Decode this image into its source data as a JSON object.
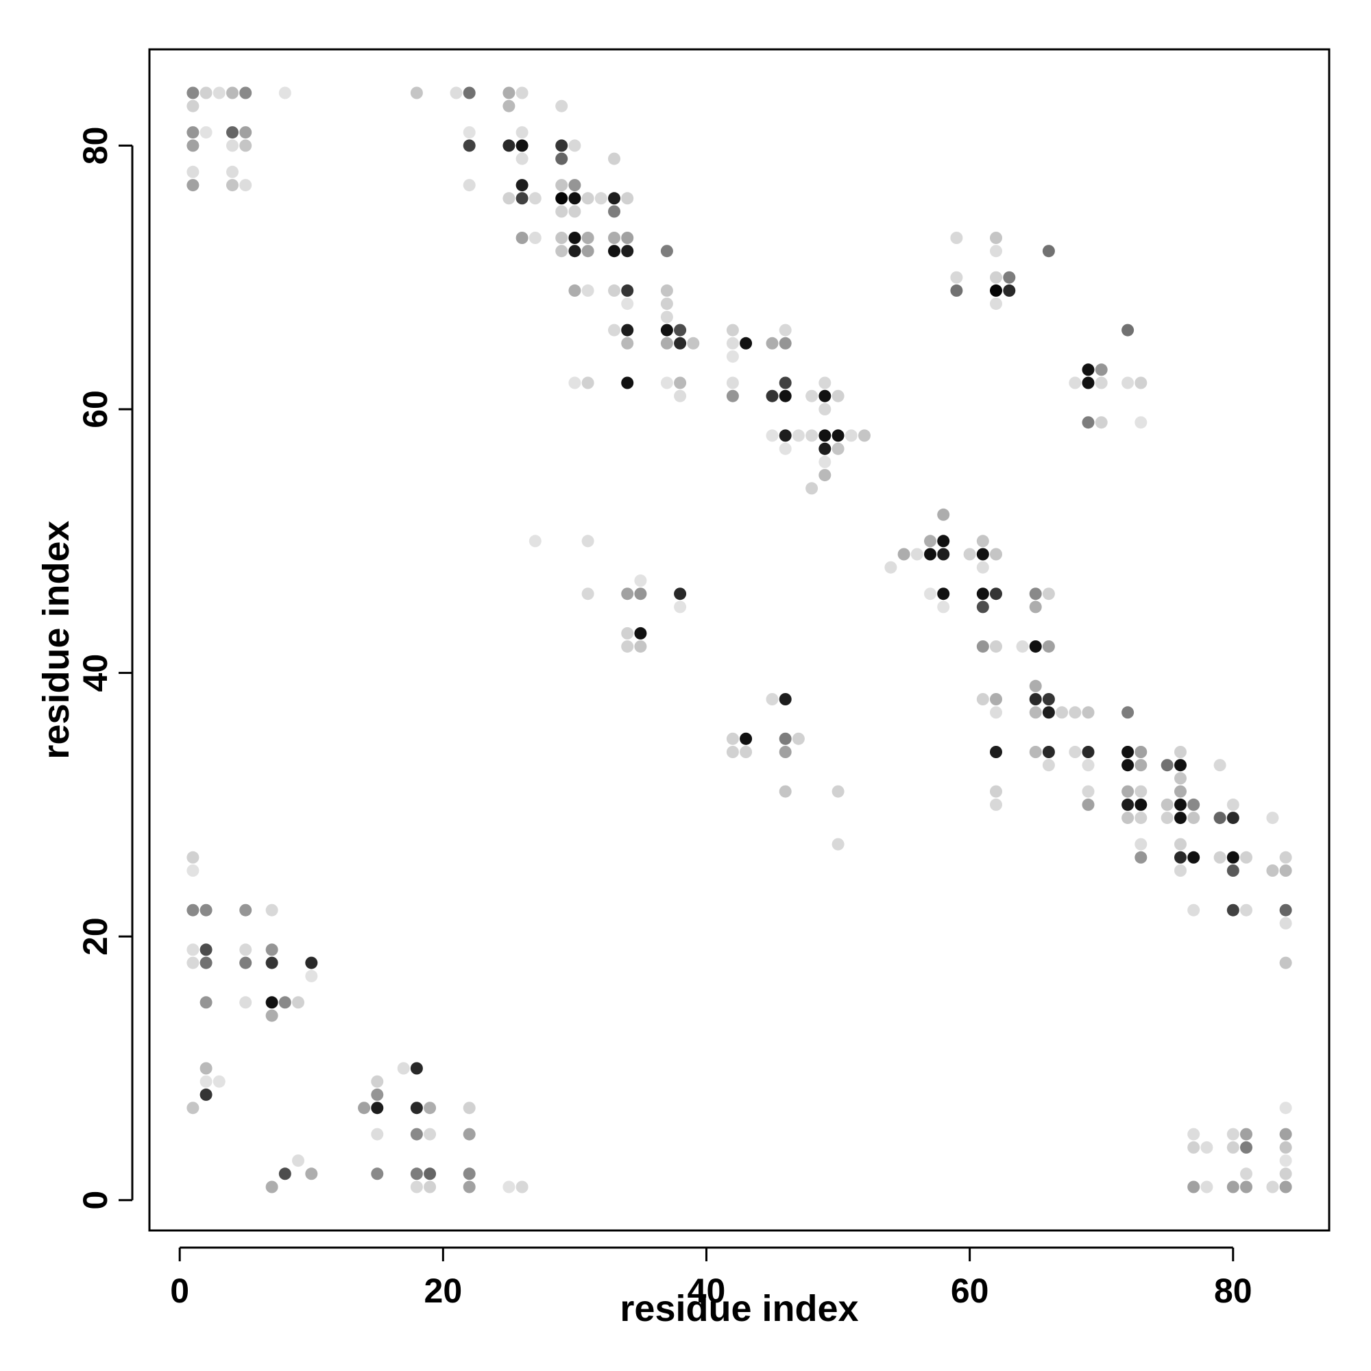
{
  "chart_data": {
    "type": "scatter",
    "title": "",
    "xlabel": "residue index",
    "ylabel": "residue index",
    "xlim": [
      -2.3,
      87.3
    ],
    "ylim": [
      -2.3,
      87.3
    ],
    "xticks": [
      0,
      20,
      40,
      60,
      80
    ],
    "yticks": [
      0,
      20,
      40,
      60,
      80
    ],
    "grid": false,
    "legend": "none",
    "value_meaning": "point darkness from 0 (lightest) to 1 (black)",
    "points": [
      [
        1,
        84,
        0.45
      ],
      [
        2,
        84,
        0.15
      ],
      [
        3,
        84,
        0.1
      ],
      [
        4,
        84,
        0.25
      ],
      [
        5,
        84,
        0.45
      ],
      [
        8,
        84,
        0.08
      ],
      [
        1,
        83,
        0.15
      ],
      [
        1,
        81,
        0.4
      ],
      [
        2,
        81,
        0.08
      ],
      [
        4,
        81,
        0.6
      ],
      [
        5,
        81,
        0.35
      ],
      [
        1,
        80,
        0.35
      ],
      [
        4,
        80,
        0.1
      ],
      [
        5,
        80,
        0.2
      ],
      [
        1,
        78,
        0.1
      ],
      [
        4,
        78,
        0.1
      ],
      [
        1,
        77,
        0.35
      ],
      [
        4,
        77,
        0.2
      ],
      [
        5,
        77,
        0.1
      ],
      [
        18,
        84,
        0.2
      ],
      [
        21,
        84,
        0.1
      ],
      [
        22,
        84,
        0.55
      ],
      [
        25,
        84,
        0.3
      ],
      [
        26,
        84,
        0.12
      ],
      [
        25,
        83,
        0.25
      ],
      [
        29,
        83,
        0.12
      ],
      [
        22,
        81,
        0.08
      ],
      [
        26,
        81,
        0.1
      ],
      [
        22,
        80,
        0.75
      ],
      [
        25,
        80,
        0.85
      ],
      [
        26,
        80,
        0.95
      ],
      [
        30,
        80,
        0.12
      ],
      [
        26,
        79,
        0.1
      ],
      [
        29,
        80,
        0.8
      ],
      [
        29,
        79,
        0.6
      ],
      [
        33,
        79,
        0.15
      ],
      [
        22,
        77,
        0.1
      ],
      [
        26,
        77,
        0.9
      ],
      [
        29,
        77,
        0.2
      ],
      [
        30,
        77,
        0.4
      ],
      [
        25,
        76,
        0.15
      ],
      [
        26,
        76,
        0.75
      ],
      [
        27,
        76,
        0.12
      ],
      [
        29,
        76,
        1.0
      ],
      [
        30,
        76,
        0.95
      ],
      [
        31,
        76,
        0.15
      ],
      [
        32,
        76,
        0.12
      ],
      [
        33,
        76,
        0.9
      ],
      [
        34,
        76,
        0.15
      ],
      [
        29,
        75,
        0.15
      ],
      [
        30,
        75,
        0.15
      ],
      [
        33,
        75,
        0.5
      ],
      [
        26,
        73,
        0.35
      ],
      [
        27,
        73,
        0.1
      ],
      [
        29,
        73,
        0.2
      ],
      [
        30,
        73,
        0.95
      ],
      [
        31,
        73,
        0.3
      ],
      [
        33,
        73,
        0.3
      ],
      [
        34,
        73,
        0.35
      ],
      [
        29,
        72,
        0.2
      ],
      [
        30,
        72,
        0.9
      ],
      [
        31,
        72,
        0.35
      ],
      [
        33,
        72,
        0.95
      ],
      [
        34,
        72,
        0.9
      ],
      [
        37,
        72,
        0.5
      ],
      [
        30,
        69,
        0.3
      ],
      [
        31,
        69,
        0.1
      ],
      [
        33,
        69,
        0.15
      ],
      [
        34,
        69,
        0.8
      ],
      [
        34,
        68,
        0.08
      ],
      [
        37,
        69,
        0.2
      ],
      [
        37,
        68,
        0.15
      ],
      [
        37,
        67,
        0.12
      ],
      [
        33,
        66,
        0.12
      ],
      [
        34,
        66,
        0.9
      ],
      [
        37,
        66,
        0.95
      ],
      [
        38,
        66,
        0.7
      ],
      [
        37,
        65,
        0.3
      ],
      [
        34,
        65,
        0.25
      ],
      [
        38,
        65,
        0.85
      ],
      [
        39,
        65,
        0.2
      ],
      [
        30,
        62,
        0.08
      ],
      [
        31,
        62,
        0.15
      ],
      [
        34,
        62,
        0.95
      ],
      [
        37,
        62,
        0.08
      ],
      [
        38,
        62,
        0.25
      ],
      [
        38,
        61,
        0.1
      ],
      [
        42,
        66,
        0.15
      ],
      [
        42,
        65,
        0.1
      ],
      [
        42,
        64,
        0.08
      ],
      [
        43,
        65,
        0.95
      ],
      [
        45,
        65,
        0.3
      ],
      [
        46,
        65,
        0.4
      ],
      [
        46,
        66,
        0.12
      ],
      [
        42,
        62,
        0.1
      ],
      [
        42,
        61,
        0.4
      ],
      [
        45,
        61,
        0.8
      ],
      [
        46,
        61,
        0.95
      ],
      [
        46,
        62,
        0.75
      ],
      [
        49,
        62,
        0.12
      ],
      [
        49,
        61,
        0.95
      ],
      [
        48,
        61,
        0.12
      ],
      [
        50,
        61,
        0.15
      ],
      [
        49,
        60,
        0.12
      ],
      [
        45,
        58,
        0.08
      ],
      [
        46,
        58,
        0.9
      ],
      [
        47,
        58,
        0.1
      ],
      [
        48,
        58,
        0.12
      ],
      [
        49,
        58,
        0.95
      ],
      [
        50,
        58,
        0.95
      ],
      [
        51,
        58,
        0.1
      ],
      [
        52,
        58,
        0.2
      ],
      [
        49,
        57,
        0.9
      ],
      [
        50,
        57,
        0.2
      ],
      [
        46,
        57,
        0.08
      ],
      [
        49,
        56,
        0.08
      ],
      [
        49,
        55,
        0.25
      ],
      [
        48,
        54,
        0.15
      ],
      [
        59,
        73,
        0.12
      ],
      [
        62,
        73,
        0.2
      ],
      [
        62,
        72,
        0.1
      ],
      [
        66,
        72,
        0.55
      ],
      [
        59,
        70,
        0.12
      ],
      [
        62,
        70,
        0.15
      ],
      [
        63,
        70,
        0.5
      ],
      [
        59,
        69,
        0.55
      ],
      [
        62,
        69,
        1.0
      ],
      [
        63,
        69,
        0.85
      ],
      [
        62,
        68,
        0.1
      ],
      [
        72,
        66,
        0.55
      ],
      [
        68,
        62,
        0.1
      ],
      [
        69,
        63,
        0.95
      ],
      [
        69,
        62,
        0.95
      ],
      [
        70,
        63,
        0.4
      ],
      [
        70,
        62,
        0.12
      ],
      [
        72,
        62,
        0.1
      ],
      [
        73,
        62,
        0.15
      ],
      [
        69,
        59,
        0.5
      ],
      [
        70,
        59,
        0.15
      ],
      [
        73,
        59,
        0.08
      ],
      [
        27,
        50,
        0.08
      ],
      [
        31,
        50,
        0.1
      ],
      [
        31,
        46,
        0.12
      ],
      [
        34,
        46,
        0.35
      ],
      [
        35,
        46,
        0.4
      ],
      [
        35,
        47,
        0.08
      ],
      [
        38,
        46,
        0.85
      ],
      [
        38,
        45,
        0.08
      ],
      [
        34,
        43,
        0.15
      ],
      [
        35,
        43,
        0.95
      ],
      [
        34,
        42,
        0.15
      ],
      [
        35,
        42,
        0.2
      ],
      [
        54,
        48,
        0.1
      ],
      [
        55,
        49,
        0.3
      ],
      [
        56,
        49,
        0.1
      ],
      [
        57,
        50,
        0.3
      ],
      [
        57,
        49,
        0.95
      ],
      [
        58,
        52,
        0.3
      ],
      [
        58,
        50,
        0.95
      ],
      [
        58,
        49,
        0.9
      ],
      [
        57,
        46,
        0.08
      ],
      [
        58,
        46,
        0.95
      ],
      [
        58,
        45,
        0.08
      ],
      [
        60,
        49,
        0.15
      ],
      [
        61,
        50,
        0.2
      ],
      [
        61,
        49,
        0.95
      ],
      [
        62,
        49,
        0.2
      ],
      [
        61,
        48,
        0.1
      ],
      [
        61,
        46,
        0.95
      ],
      [
        61,
        45,
        0.7
      ],
      [
        62,
        46,
        0.8
      ],
      [
        61,
        42,
        0.4
      ],
      [
        62,
        42,
        0.15
      ],
      [
        65,
        46,
        0.45
      ],
      [
        66,
        46,
        0.15
      ],
      [
        65,
        45,
        0.3
      ],
      [
        64,
        42,
        0.1
      ],
      [
        65,
        42,
        0.95
      ],
      [
        66,
        42,
        0.35
      ],
      [
        45,
        38,
        0.12
      ],
      [
        46,
        38,
        0.9
      ],
      [
        42,
        35,
        0.15
      ],
      [
        43,
        35,
        0.95
      ],
      [
        42,
        34,
        0.15
      ],
      [
        43,
        34,
        0.15
      ],
      [
        46,
        35,
        0.5
      ],
      [
        47,
        35,
        0.15
      ],
      [
        46,
        34,
        0.35
      ],
      [
        46,
        31,
        0.2
      ],
      [
        50,
        31,
        0.15
      ],
      [
        50,
        27,
        0.12
      ],
      [
        61,
        38,
        0.15
      ],
      [
        62,
        38,
        0.3
      ],
      [
        62,
        37,
        0.1
      ],
      [
        65,
        39,
        0.3
      ],
      [
        65,
        38,
        0.85
      ],
      [
        66,
        38,
        0.8
      ],
      [
        65,
        37,
        0.25
      ],
      [
        66,
        37,
        0.9
      ],
      [
        67,
        37,
        0.15
      ],
      [
        68,
        37,
        0.15
      ],
      [
        69,
        37,
        0.2
      ],
      [
        62,
        34,
        0.9
      ],
      [
        65,
        34,
        0.25
      ],
      [
        66,
        34,
        0.85
      ],
      [
        66,
        33,
        0.12
      ],
      [
        68,
        34,
        0.12
      ],
      [
        69,
        34,
        0.85
      ],
      [
        69,
        33,
        0.1
      ],
      [
        62,
        31,
        0.15
      ],
      [
        62,
        30,
        0.12
      ],
      [
        69,
        31,
        0.12
      ],
      [
        69,
        30,
        0.35
      ],
      [
        72,
        37,
        0.5
      ],
      [
        72,
        34,
        0.95
      ],
      [
        73,
        34,
        0.35
      ],
      [
        72,
        33,
        0.95
      ],
      [
        73,
        33,
        0.3
      ],
      [
        72,
        31,
        0.3
      ],
      [
        73,
        31,
        0.15
      ],
      [
        72,
        30,
        0.9
      ],
      [
        73,
        30,
        0.95
      ],
      [
        72,
        29,
        0.2
      ],
      [
        73,
        29,
        0.15
      ],
      [
        73,
        27,
        0.1
      ],
      [
        73,
        26,
        0.4
      ],
      [
        75,
        33,
        0.55
      ],
      [
        76,
        34,
        0.15
      ],
      [
        76,
        33,
        0.95
      ],
      [
        76,
        32,
        0.2
      ],
      [
        75,
        30,
        0.2
      ],
      [
        76,
        30,
        0.95
      ],
      [
        77,
        30,
        0.45
      ],
      [
        76,
        31,
        0.3
      ],
      [
        75,
        29,
        0.15
      ],
      [
        76,
        29,
        0.95
      ],
      [
        77,
        29,
        0.2
      ],
      [
        76,
        27,
        0.15
      ],
      [
        76,
        26,
        0.85
      ],
      [
        77,
        26,
        0.95
      ],
      [
        76,
        25,
        0.12
      ],
      [
        77,
        22,
        0.1
      ],
      [
        79,
        33,
        0.12
      ],
      [
        79,
        29,
        0.6
      ],
      [
        80,
        30,
        0.12
      ],
      [
        80,
        29,
        0.85
      ],
      [
        79,
        26,
        0.15
      ],
      [
        80,
        26,
        0.95
      ],
      [
        81,
        26,
        0.15
      ],
      [
        80,
        25,
        0.65
      ],
      [
        80,
        22,
        0.75
      ],
      [
        81,
        22,
        0.12
      ],
      [
        83,
        29,
        0.1
      ],
      [
        83,
        25,
        0.2
      ],
      [
        84,
        26,
        0.15
      ],
      [
        84,
        25,
        0.25
      ],
      [
        84,
        22,
        0.6
      ],
      [
        84,
        21,
        0.1
      ],
      [
        84,
        18,
        0.2
      ],
      [
        1,
        26,
        0.15
      ],
      [
        1,
        25,
        0.08
      ],
      [
        1,
        22,
        0.45
      ],
      [
        2,
        22,
        0.45
      ],
      [
        5,
        22,
        0.4
      ],
      [
        7,
        22,
        0.12
      ],
      [
        1,
        19,
        0.1
      ],
      [
        2,
        19,
        0.7
      ],
      [
        5,
        19,
        0.12
      ],
      [
        7,
        19,
        0.4
      ],
      [
        1,
        18,
        0.12
      ],
      [
        2,
        18,
        0.55
      ],
      [
        5,
        18,
        0.5
      ],
      [
        7,
        18,
        0.8
      ],
      [
        10,
        18,
        0.85
      ],
      [
        10,
        17,
        0.08
      ],
      [
        2,
        15,
        0.4
      ],
      [
        5,
        15,
        0.1
      ],
      [
        7,
        15,
        0.95
      ],
      [
        8,
        15,
        0.45
      ],
      [
        9,
        15,
        0.15
      ],
      [
        7,
        14,
        0.3
      ],
      [
        2,
        10,
        0.25
      ],
      [
        2,
        9,
        0.08
      ],
      [
        3,
        9,
        0.08
      ],
      [
        1,
        7,
        0.2
      ],
      [
        2,
        8,
        0.8
      ],
      [
        7,
        1,
        0.3
      ],
      [
        8,
        2,
        0.7
      ],
      [
        9,
        3,
        0.1
      ],
      [
        10,
        2,
        0.3
      ],
      [
        14,
        7,
        0.35
      ],
      [
        15,
        7,
        0.9
      ],
      [
        15,
        8,
        0.4
      ],
      [
        15,
        9,
        0.15
      ],
      [
        15,
        5,
        0.1
      ],
      [
        15,
        2,
        0.45
      ],
      [
        17,
        10,
        0.1
      ],
      [
        18,
        10,
        0.85
      ],
      [
        18,
        7,
        0.85
      ],
      [
        19,
        7,
        0.3
      ],
      [
        18,
        5,
        0.45
      ],
      [
        19,
        5,
        0.12
      ],
      [
        18,
        2,
        0.5
      ],
      [
        19,
        2,
        0.6
      ],
      [
        18,
        1,
        0.12
      ],
      [
        19,
        1,
        0.15
      ],
      [
        22,
        7,
        0.15
      ],
      [
        22,
        5,
        0.35
      ],
      [
        22,
        2,
        0.45
      ],
      [
        22,
        1,
        0.35
      ],
      [
        25,
        1,
        0.08
      ],
      [
        26,
        1,
        0.12
      ],
      [
        77,
        5,
        0.1
      ],
      [
        77,
        4,
        0.15
      ],
      [
        78,
        4,
        0.1
      ],
      [
        77,
        1,
        0.35
      ],
      [
        78,
        1,
        0.1
      ],
      [
        80,
        5,
        0.12
      ],
      [
        81,
        5,
        0.35
      ],
      [
        80,
        4,
        0.15
      ],
      [
        81,
        4,
        0.5
      ],
      [
        81,
        2,
        0.12
      ],
      [
        80,
        1,
        0.35
      ],
      [
        81,
        1,
        0.35
      ],
      [
        83,
        1,
        0.12
      ],
      [
        84,
        7,
        0.08
      ],
      [
        84,
        5,
        0.35
      ],
      [
        84,
        4,
        0.2
      ],
      [
        84,
        3,
        0.08
      ],
      [
        84,
        2,
        0.15
      ],
      [
        84,
        1,
        0.35
      ]
    ]
  }
}
